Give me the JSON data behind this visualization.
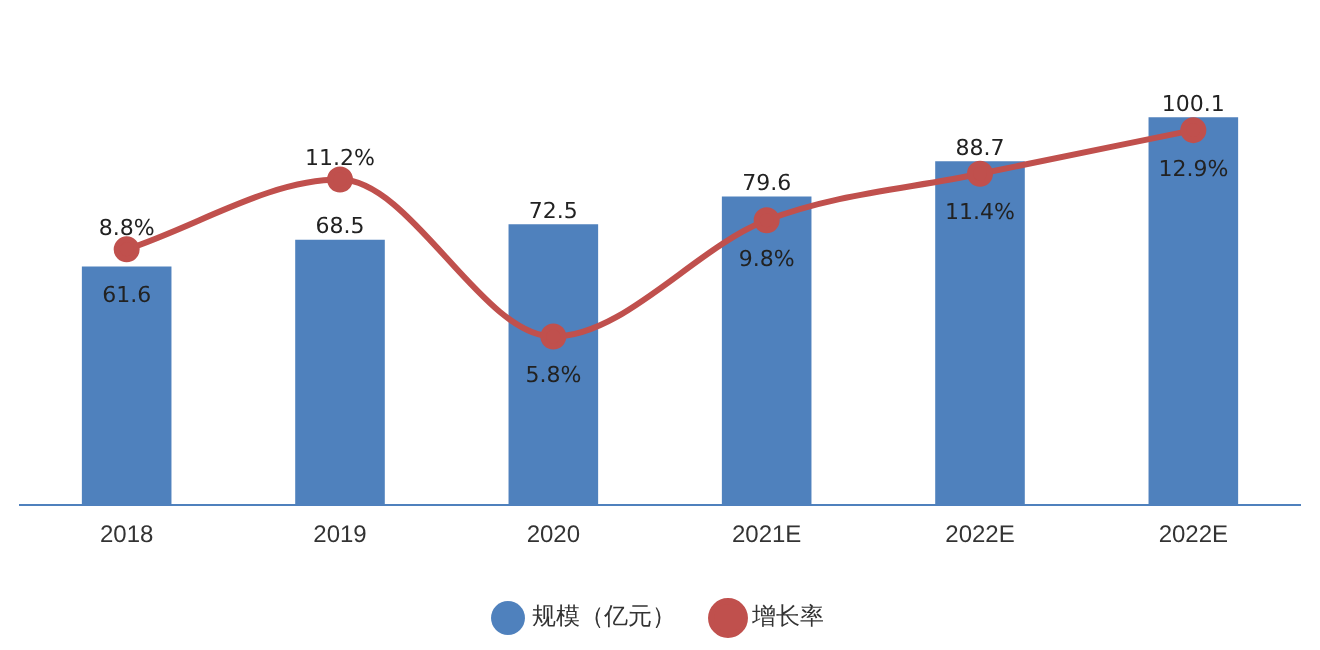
{
  "chart_data": {
    "type": "bar",
    "categories": [
      "2018",
      "2019",
      "2020",
      "2021E",
      "2022E",
      "2022E"
    ],
    "series": [
      {
        "name": "规模（亿元）",
        "color": "#4f81bd",
        "values": [
          61.6,
          68.5,
          72.5,
          79.6,
          88.7,
          100.1
        ],
        "value_labels": [
          "61.6",
          "68.5",
          "72.5",
          "79.6",
          "88.7",
          "100.1"
        ]
      },
      {
        "name": "增长率",
        "type": "line",
        "axis": "y2",
        "color": "#c0504d",
        "values": [
          8.8,
          11.2,
          5.8,
          9.8,
          11.4,
          12.9
        ],
        "value_labels": [
          "8.8%",
          "11.2%",
          "5.8%",
          "9.8%",
          "11.4%",
          "12.9%"
        ]
      }
    ],
    "tick_labels": "x",
    "grid": false,
    "legend": "bottom",
    "marker": "circle",
    "line_style": "solid"
  }
}
